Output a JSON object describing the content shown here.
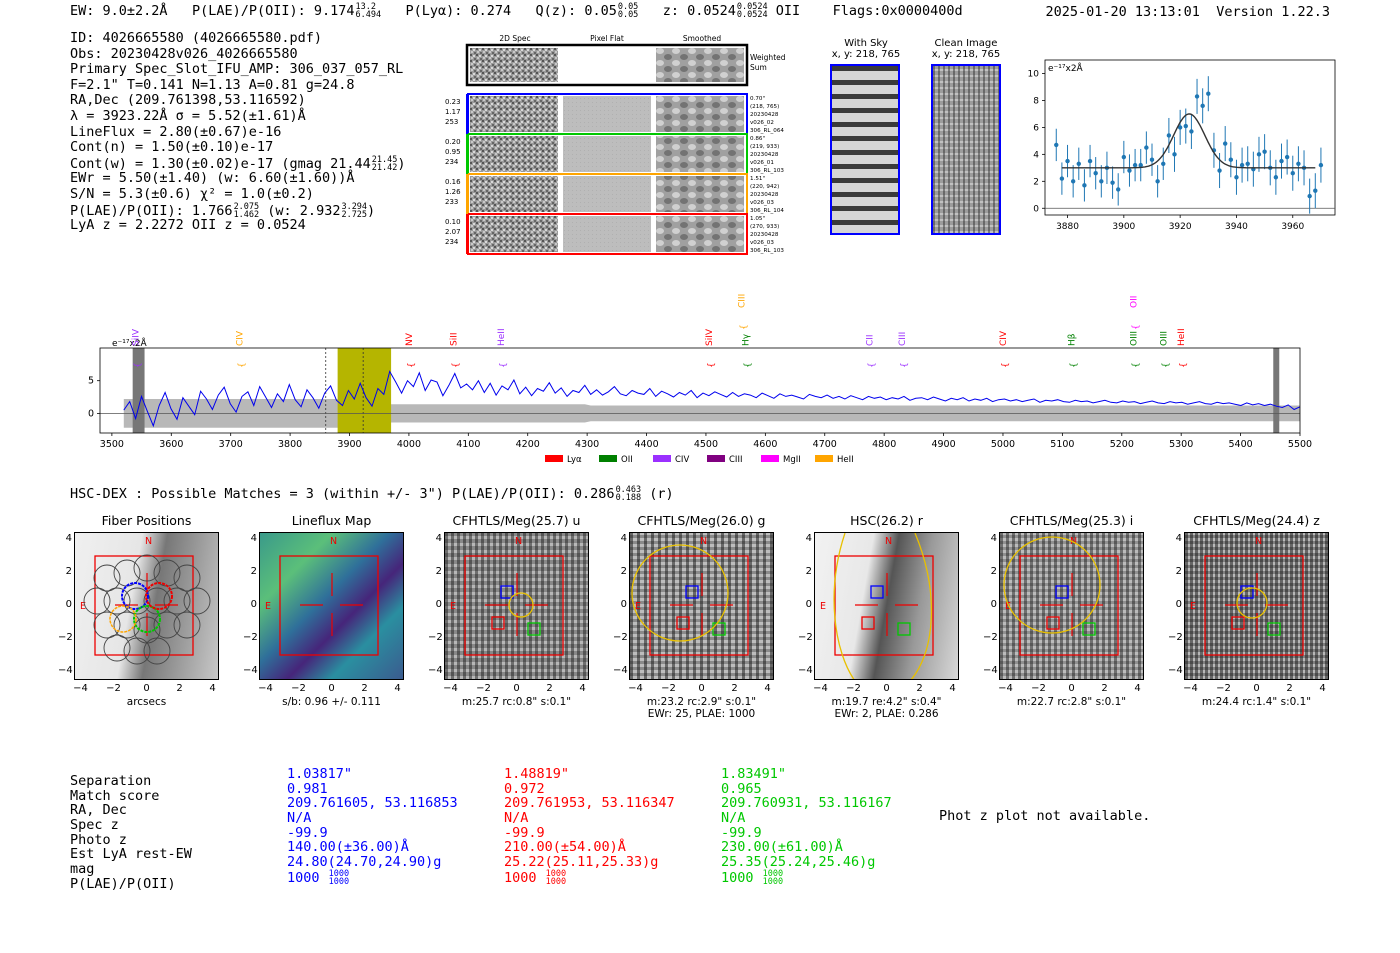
{
  "header": {
    "ew": "EW: 9.0±2.2Å",
    "plae_label": "P(LAE)/P(OII): 9.174",
    "plae_hi": "13.2",
    "plae_lo": "6.494",
    "plya": "P(Lyα): 0.274",
    "qz_label": "Q(z): 0.05",
    "qz_hi": "0.05",
    "qz_lo": "0.05",
    "z_label": "z: 0.0524",
    "z_hi": "0.0524",
    "z_lo": "0.0524",
    "z_line": "OII",
    "flags": "Flags:0x0000400d",
    "timestamp": "2025-01-20 13:13:01",
    "version": "Version 1.22.3"
  },
  "info": {
    "id": "ID: 4026665580 (4026665580.pdf)",
    "obs": "Obs: 20230428v026_4026665580",
    "primary": "Primary Spec_Slot_IFU_AMP: 306_037_057_RL",
    "fit": "F=2.1\"  T=0.141  N=1.13  A=0.81  g=24.8",
    "radec": "RA,Dec (209.761398,53.116592)",
    "lambda": "λ = 3923.22Å  σ = 5.52(±1.61)Å",
    "lineflux": "LineFlux = 2.80(±0.67)e-16",
    "contn": "Cont(n) = 1.50(±0.10)e-17",
    "contw": "Cont(w) = 1.30(±0.02)e-17 (gmag 21.44",
    "contw_hi": "21.45",
    "contw_lo": "21.42",
    "contw_end": ")",
    "ewr": "EWr = 5.50(±1.40) (w: 6.60(±1.60))Å",
    "sn": "S/N = 5.3(±0.6)  χ² = 1.0(±0.2)",
    "plae": "P(LAE)/P(OII): 1.766",
    "plae_hi": "2.075",
    "plae_lo": "1.462",
    "plae_w": "(w: 2.932",
    "plae_w_hi": "3.294",
    "plae_w_lo": "2.725",
    "plae_w_end": ")",
    "lyaz": "LyA z = 2.2272  OII z = 0.0524"
  },
  "stamps": {
    "col_2d": "2D Spec",
    "col_flat": "Pixel Flat",
    "col_smooth": "Smoothed",
    "weighted": "Weighted Sum",
    "rows": [
      {
        "left": [
          "0.23",
          "1.17",
          "253"
        ],
        "right": [
          "0.70\"",
          "(218, 765)",
          "20230428",
          "v026_02",
          "306_RL_064"
        ],
        "color": "#0000ff"
      },
      {
        "left": [
          "0.20",
          "0.95",
          "234"
        ],
        "right": [
          "0.86\"",
          "(219, 933)",
          "20230428",
          "v026_01",
          "306_RL_103"
        ],
        "color": "#00c800"
      },
      {
        "left": [
          "0.16",
          "1.26",
          "233"
        ],
        "right": [
          "1.51\"",
          "(220, 942)",
          "20230428",
          "v026_03",
          "306_RL_104"
        ],
        "color": "#ffa500"
      },
      {
        "left": [
          "0.10",
          "2.07",
          "234"
        ],
        "right": [
          "1.05\"",
          "(270, 933)",
          "20230428",
          "v026_03",
          "306_RL_103"
        ],
        "color": "#ff0000"
      }
    ],
    "with_sky": "With Sky",
    "with_sky_xy": "x, y: 218, 765",
    "clean": "Clean Image",
    "clean_xy": "x, y: 218, 765"
  },
  "zoom_plot": {
    "ylabel": "e⁻¹⁷x2Å"
  },
  "spectrum": {
    "ylabel": "e⁻¹⁷x2Å",
    "line_labels": [
      {
        "text": "SiIV",
        "wave": 3545,
        "color": "#9b30ff",
        "level": 0
      },
      {
        "text": "CIV",
        "wave": 3720,
        "color": "#ffa500",
        "level": 0
      },
      {
        "text": "NV",
        "wave": 4005,
        "color": "#ff0000",
        "level": 0
      },
      {
        "text": "SiII",
        "wave": 4080,
        "color": "#ff0000",
        "level": 0
      },
      {
        "text": "HeII",
        "wave": 4160,
        "color": "#9b30ff",
        "level": 0
      },
      {
        "text": "SiIV",
        "wave": 4510,
        "color": "#ff0000",
        "level": 0
      },
      {
        "text": "CIII",
        "wave": 4565,
        "color": "#ffa500",
        "level": 1
      },
      {
        "text": "Hγ",
        "wave": 4572,
        "color": "#008000",
        "level": 0
      },
      {
        "text": "CII",
        "wave": 4780,
        "color": "#9b30ff",
        "level": 0
      },
      {
        "text": "CIII",
        "wave": 4835,
        "color": "#9b30ff",
        "level": 0
      },
      {
        "text": "CIV",
        "wave": 5005,
        "color": "#ff0000",
        "level": 0
      },
      {
        "text": "Hβ",
        "wave": 5120,
        "color": "#008000",
        "level": 0
      },
      {
        "text": "OII",
        "wave": 5225,
        "color": "#ff00ff",
        "level": 1
      },
      {
        "text": "OIII",
        "wave": 5225,
        "color": "#008000",
        "level": 0
      },
      {
        "text": "OIII",
        "wave": 5275,
        "color": "#008000",
        "level": 0
      },
      {
        "text": "HeII",
        "wave": 5305,
        "color": "#ff0000",
        "level": 0
      }
    ],
    "legend": [
      {
        "label": "Lyα",
        "color": "#ff0000"
      },
      {
        "label": "OII",
        "color": "#008000"
      },
      {
        "label": "CIV",
        "color": "#9b30ff"
      },
      {
        "label": "CIII",
        "color": "#800080"
      },
      {
        "label": "MgII",
        "color": "#ff00ff"
      },
      {
        "label": "HeII",
        "color": "#ffa500"
      }
    ]
  },
  "hsc": {
    "title": "HSC-DEX : Possible Matches = 3 (within +/- 3\")  P(LAE)/P(OII): 0.286",
    "hi": "0.463",
    "lo": "0.188",
    "band": "(r)"
  },
  "cutouts": [
    {
      "title": "Fiber Positions",
      "cap1": "arcsecs",
      "cap2": ""
    },
    {
      "title": "Lineflux Map",
      "cap1": "s/b: 0.96 +/- 0.111",
      "cap2": ""
    },
    {
      "title": "CFHTLS/Meg(25.7) u",
      "cap1": "m:25.7 rc:0.8\"  s:0.1\"",
      "cap2": ""
    },
    {
      "title": "CFHTLS/Meg(26.0) g",
      "cap1": "m:23.2 rc:2.9\"  s:0.1\"",
      "cap2": "EWr: 25, PLAE: 1000"
    },
    {
      "title": "HSC(26.2) r",
      "cap1": "m:19.7  re:4.2\"  s:0.4\"",
      "cap2": "EWr: 2, PLAE: 0.286"
    },
    {
      "title": "CFHTLS/Meg(25.3) i",
      "cap1": "m:22.7 rc:2.8\"  s:0.1\"",
      "cap2": ""
    },
    {
      "title": "CFHTLS/Meg(24.4) z",
      "cap1": "m:24.4 rc:1.4\"  s:0.1\"",
      "cap2": ""
    }
  ],
  "compass": {
    "n": "N",
    "e": "E"
  },
  "table": {
    "labels": [
      "Separation",
      "Match score",
      "RA, Dec",
      "Spec z",
      "Photo z",
      "Est LyA rest-EW",
      "mag",
      "P(LAE)/P(OII)"
    ],
    "matches": [
      {
        "sep": "1.03817\"",
        "score": "0.981",
        "radec": "209.761605, 53.116853",
        "specz": "N/A",
        "photoz": "-99.9",
        "ew": "140.00(±36.00)Å",
        "mag": "24.80(24.70,24.90)g",
        "plae": "1000",
        "plae_hi": "1000",
        "plae_lo": "1000"
      },
      {
        "sep": "1.48819\"",
        "score": "0.972",
        "radec": "209.761953, 53.116347",
        "specz": "N/A",
        "photoz": "-99.9",
        "ew": "210.00(±54.00)Å",
        "mag": "25.22(25.11,25.33)g",
        "plae": "1000",
        "plae_hi": "1000",
        "plae_lo": "1000"
      },
      {
        "sep": "1.83491\"",
        "score": "0.965",
        "radec": "209.760931, 53.116167",
        "specz": "N/A",
        "photoz": "-99.9",
        "ew": "230.00(±61.00)Å",
        "mag": "25.35(25.24,25.46)g",
        "plae": "1000",
        "plae_hi": "1000",
        "plae_lo": "1000"
      }
    ],
    "photz_msg": "Phot z plot not available."
  },
  "chart_data": [
    {
      "type": "scatter",
      "title": "",
      "xlabel": "",
      "ylabel": "e⁻¹⁷x2Å",
      "xlim": [
        3872,
        3975
      ],
      "ylim": [
        -0.5,
        11
      ],
      "xticks": [
        3880,
        3900,
        3920,
        3940,
        3960
      ],
      "yticks": [
        0,
        2,
        4,
        6,
        8,
        10
      ],
      "x": [
        3876,
        3878,
        3880,
        3882,
        3884,
        3886,
        3888,
        3890,
        3892,
        3894,
        3896,
        3898,
        3900,
        3902,
        3904,
        3906,
        3908,
        3910,
        3912,
        3914,
        3916,
        3918,
        3920,
        3922,
        3924,
        3926,
        3928,
        3930,
        3932,
        3934,
        3936,
        3938,
        3940,
        3942,
        3944,
        3946,
        3948,
        3950,
        3952,
        3954,
        3956,
        3958,
        3960,
        3962,
        3964,
        3966,
        3968,
        3970
      ],
      "y": [
        4.7,
        2.2,
        3.5,
        2.0,
        3.3,
        1.7,
        3.5,
        2.6,
        2.0,
        3.0,
        1.9,
        1.4,
        3.8,
        2.8,
        3.2,
        3.2,
        4.5,
        3.6,
        2.0,
        3.3,
        5.4,
        4.0,
        6.0,
        6.1,
        5.7,
        8.3,
        7.6,
        8.5,
        4.3,
        2.8,
        4.8,
        3.6,
        2.3,
        3.2,
        3.3,
        2.9,
        4.0,
        4.2,
        3.0,
        2.3,
        3.5,
        3.8,
        2.6,
        3.3,
        3.0,
        0.9,
        1.3,
        3.2
      ],
      "yerr": [
        1.2,
        1.2,
        1.2,
        1.2,
        1.2,
        1.2,
        1.2,
        1.2,
        1.2,
        1.2,
        1.2,
        1.2,
        1.2,
        1.2,
        1.2,
        1.2,
        1.2,
        1.2,
        1.2,
        1.2,
        1.3,
        1.3,
        1.3,
        1.3,
        1.3,
        1.3,
        1.3,
        1.3,
        1.3,
        1.3,
        1.3,
        1.3,
        1.3,
        1.3,
        1.3,
        1.3,
        1.3,
        1.3,
        1.3,
        1.3,
        1.3,
        1.3,
        1.3,
        1.3,
        1.3,
        1.3,
        1.3,
        1.3
      ],
      "fit": {
        "center": 3923.22,
        "sigma": 5.52,
        "continuum": 3.0,
        "amplitude": 4.0
      }
    },
    {
      "type": "line",
      "title": "",
      "xlabel": "",
      "ylabel": "e⁻¹⁷x2Å",
      "xlim": [
        3480,
        5500
      ],
      "ylim": [
        -3,
        10
      ],
      "xticks": [
        3500,
        3600,
        3700,
        3800,
        3900,
        4000,
        4100,
        4200,
        4300,
        4400,
        4500,
        4600,
        4700,
        4800,
        4900,
        5000,
        5100,
        5200,
        5300,
        5400,
        5500
      ],
      "yticks": [
        0,
        5
      ],
      "highlight_band": [
        3880,
        3970
      ],
      "line_markers": [
        3860,
        3923
      ],
      "masked": [
        [
          3535,
          3555
        ],
        [
          5455,
          5465
        ]
      ],
      "flux": [
        0.5,
        1.8,
        -0.8,
        2.6,
        0.3,
        -1.9,
        1.2,
        3.2,
        0.7,
        -0.9,
        2.4,
        1.1,
        -0.2,
        3.4,
        2.2,
        0.6,
        2.8,
        4.0,
        1.5,
        0.2,
        2.6,
        3.3,
        1.2,
        4.1,
        2.5,
        0.9,
        3.0,
        1.8,
        4.4,
        2.1,
        1.0,
        3.6,
        2.4,
        0.8,
        3.1,
        4.2,
        2.0,
        1.2,
        3.5,
        2.2,
        4.6,
        2.4,
        1.1,
        3.8,
        2.9,
        6.4,
        4.8,
        3.1,
        5.0,
        4.1,
        6.2,
        3.5,
        5.1,
        4.8,
        2.7,
        4.3,
        6.1,
        3.9,
        4.5,
        3.6,
        5.0,
        3.2,
        4.6,
        2.8,
        4.2,
        3.6,
        5.1,
        3.0,
        4.0,
        2.7,
        3.8,
        3.4,
        4.7,
        3.1,
        3.9,
        2.6,
        3.5,
        3.2,
        4.3,
        2.9,
        3.6,
        2.8,
        3.3,
        4.1,
        3.0,
        2.7,
        3.5,
        3.1,
        2.9,
        3.8,
        2.6,
        3.4,
        3.0,
        2.5,
        3.2,
        2.8,
        3.5,
        2.4,
        3.1,
        2.7,
        3.3,
        2.9,
        2.5,
        3.2,
        2.6,
        3.0,
        2.8,
        2.4,
        3.1,
        2.7,
        2.3,
        3.0,
        2.6,
        2.8,
        2.5,
        2.2,
        2.9,
        2.6,
        2.4,
        2.8,
        2.3,
        2.6,
        2.2,
        2.7,
        2.4,
        2.1,
        2.6,
        2.3,
        2.5,
        2.1,
        2.4,
        2.2,
        2.6,
        2.0,
        2.3,
        2.4,
        2.1,
        2.5,
        2.2,
        1.9,
        2.3,
        2.1,
        2.4,
        1.9,
        2.2,
        2.0,
        2.3,
        1.8,
        2.1,
        2.2,
        1.9,
        2.1,
        1.8,
        2.0,
        2.2,
        1.7,
        2.0,
        1.9,
        2.1,
        1.8,
        1.7,
        2.0,
        1.8,
        1.9,
        1.6,
        1.8,
        2.0,
        1.7,
        1.6,
        1.9,
        1.7,
        1.8,
        1.5,
        1.7,
        1.9,
        1.6,
        1.5,
        1.8,
        1.6,
        1.7,
        1.4,
        1.6,
        1.8,
        1.5,
        1.4,
        1.7,
        1.5,
        1.6,
        1.4,
        1.2,
        1.6,
        1.3,
        1.5,
        1.2,
        1.4,
        1.1,
        0.9,
        1.3,
        0.6,
        1.0
      ]
    }
  ]
}
